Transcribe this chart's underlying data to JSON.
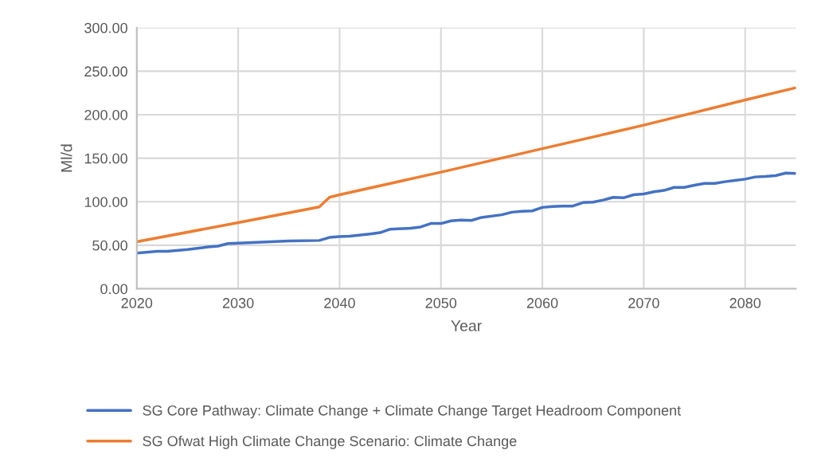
{
  "chart_data": {
    "type": "line",
    "xlabel": "Year",
    "ylabel": "Ml/d",
    "xlim": [
      2020,
      2085
    ],
    "xticks": [
      2020,
      2030,
      2040,
      2050,
      2060,
      2070,
      2080
    ],
    "ylim": [
      0,
      300
    ],
    "yticks": [
      {
        "value": 0,
        "label": "0.00"
      },
      {
        "value": 50,
        "label": "50.00"
      },
      {
        "value": 100,
        "label": "100.00"
      },
      {
        "value": 150,
        "label": "150.00"
      },
      {
        "value": 200,
        "label": "200.00"
      },
      {
        "value": 250,
        "label": "250.00"
      },
      {
        "value": 300,
        "label": "300.00"
      }
    ],
    "grid": true,
    "legend": "bottom",
    "marker": "none",
    "line_style": "solid",
    "series": [
      {
        "name": "SG Core Pathway: Climate Change + Climate Change Target Headroom Component",
        "color": "#4472c4",
        "x": [
          2020,
          2022,
          2023,
          2025,
          2027,
          2028,
          2029,
          2030,
          2035,
          2038,
          2039,
          2040,
          2041,
          2043,
          2044,
          2045,
          2047,
          2048,
          2049,
          2050,
          2051,
          2052,
          2053,
          2054,
          2056,
          2057,
          2058,
          2059,
          2060,
          2061,
          2062,
          2063,
          2064,
          2065,
          2066,
          2067,
          2068,
          2069,
          2070,
          2071,
          2072,
          2073,
          2074,
          2075,
          2076,
          2077,
          2078,
          2079,
          2080,
          2081,
          2082,
          2083,
          2084,
          2085
        ],
        "values": [
          41,
          43,
          43,
          45,
          48,
          49,
          52,
          52.5,
          55,
          55.5,
          59,
          60,
          60.5,
          63,
          64.5,
          68.5,
          69.5,
          71,
          75,
          75,
          78,
          79,
          78.5,
          82,
          85,
          88,
          89,
          89.5,
          93.5,
          94.5,
          95,
          95,
          99,
          99.5,
          102,
          105,
          104.5,
          108,
          109,
          111.5,
          113,
          116.5,
          116.5,
          119,
          121,
          121,
          123,
          124.5,
          126,
          128.5,
          129,
          130,
          133,
          132.5
        ]
      },
      {
        "name": "SG Ofwat High Climate Change Scenario: Climate Change",
        "color": "#ed7d31",
        "x": [
          2020,
          2030,
          2038,
          2039,
          2040,
          2050,
          2060,
          2070,
          2080,
          2085
        ],
        "values": [
          54,
          76,
          94,
          105,
          108,
          134,
          161,
          188,
          217,
          231
        ]
      }
    ]
  }
}
